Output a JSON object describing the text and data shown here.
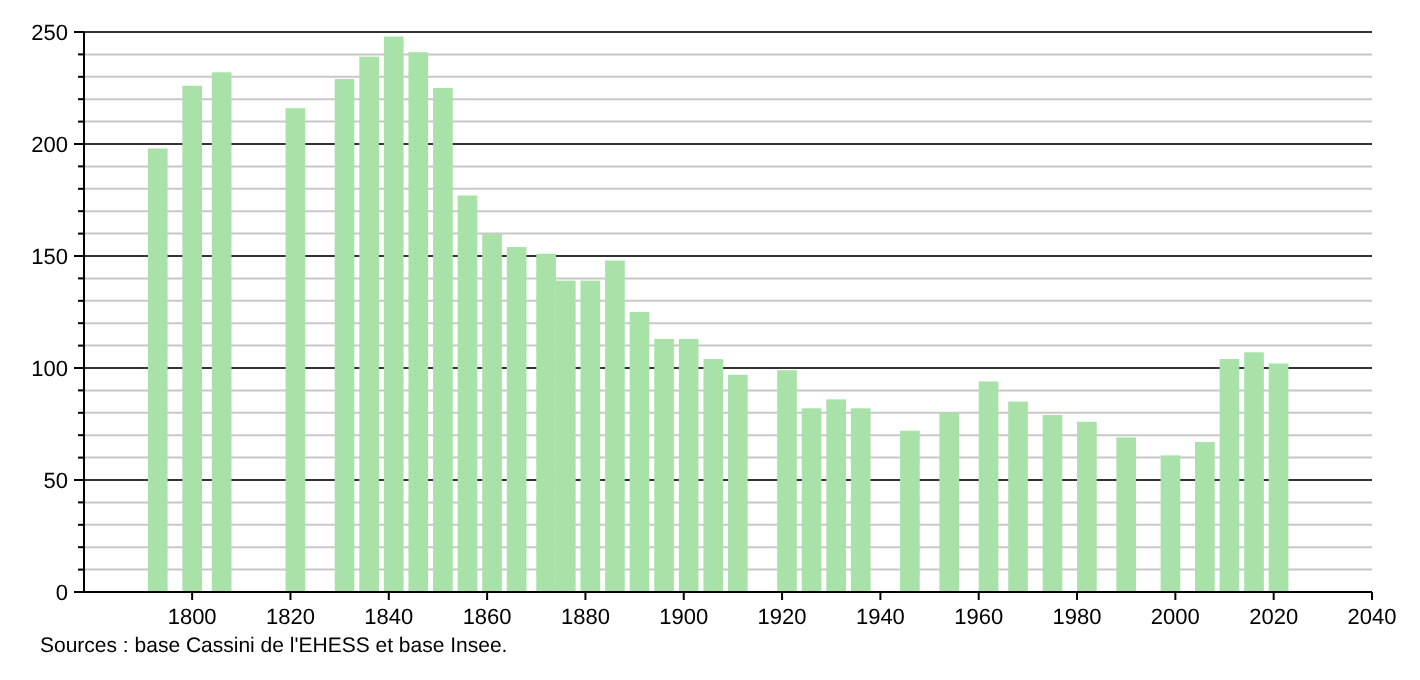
{
  "chart_data": {
    "type": "bar",
    "x": [
      1793,
      1800,
      1806,
      1821,
      1831,
      1836,
      1841,
      1846,
      1851,
      1856,
      1861,
      1866,
      1872,
      1876,
      1881,
      1886,
      1891,
      1896,
      1901,
      1906,
      1911,
      1921,
      1926,
      1931,
      1936,
      1946,
      1954,
      1962,
      1968,
      1975,
      1982,
      1990,
      1999,
      2006,
      2011,
      2016,
      2021
    ],
    "values": [
      198,
      226,
      232,
      216,
      229,
      239,
      248,
      241,
      225,
      177,
      160,
      154,
      151,
      139,
      139,
      148,
      125,
      113,
      113,
      104,
      97,
      99,
      82,
      86,
      82,
      72,
      80,
      94,
      85,
      79,
      76,
      69,
      61,
      67,
      104,
      107,
      102
    ],
    "color": "#a8e2a8",
    "xlim": [
      1778,
      2040
    ],
    "xticks": [
      1800,
      1820,
      1840,
      1860,
      1880,
      1900,
      1920,
      1940,
      1960,
      1980,
      2000,
      2020,
      2040
    ],
    "ylim": [
      0,
      250
    ],
    "yticks": [
      0,
      {
        "value": 10,
        "label": null
      },
      {
        "value": 20,
        "label": null
      },
      {
        "value": 30,
        "label": null
      },
      {
        "value": 40,
        "label": null
      },
      50,
      {
        "value": 60,
        "label": null
      },
      {
        "value": 70,
        "label": null
      },
      {
        "value": 80,
        "label": null
      },
      {
        "value": 90,
        "label": null
      },
      100,
      {
        "value": 110,
        "label": null
      },
      {
        "value": 120,
        "label": null
      },
      {
        "value": 130,
        "label": null
      },
      {
        "value": 140,
        "label": null
      },
      150,
      {
        "value": 160,
        "label": null
      },
      {
        "value": 170,
        "label": null
      },
      {
        "value": 180,
        "label": null
      },
      {
        "value": 190,
        "label": null
      },
      200,
      {
        "value": 210,
        "label": null
      },
      {
        "value": 220,
        "label": null
      },
      {
        "value": 230,
        "label": null
      },
      {
        "value": 240,
        "label": null
      },
      250
    ],
    "grid": true,
    "annotations": [
      "Sources : base Cassini de l'EHESS et base Insee."
    ]
  }
}
